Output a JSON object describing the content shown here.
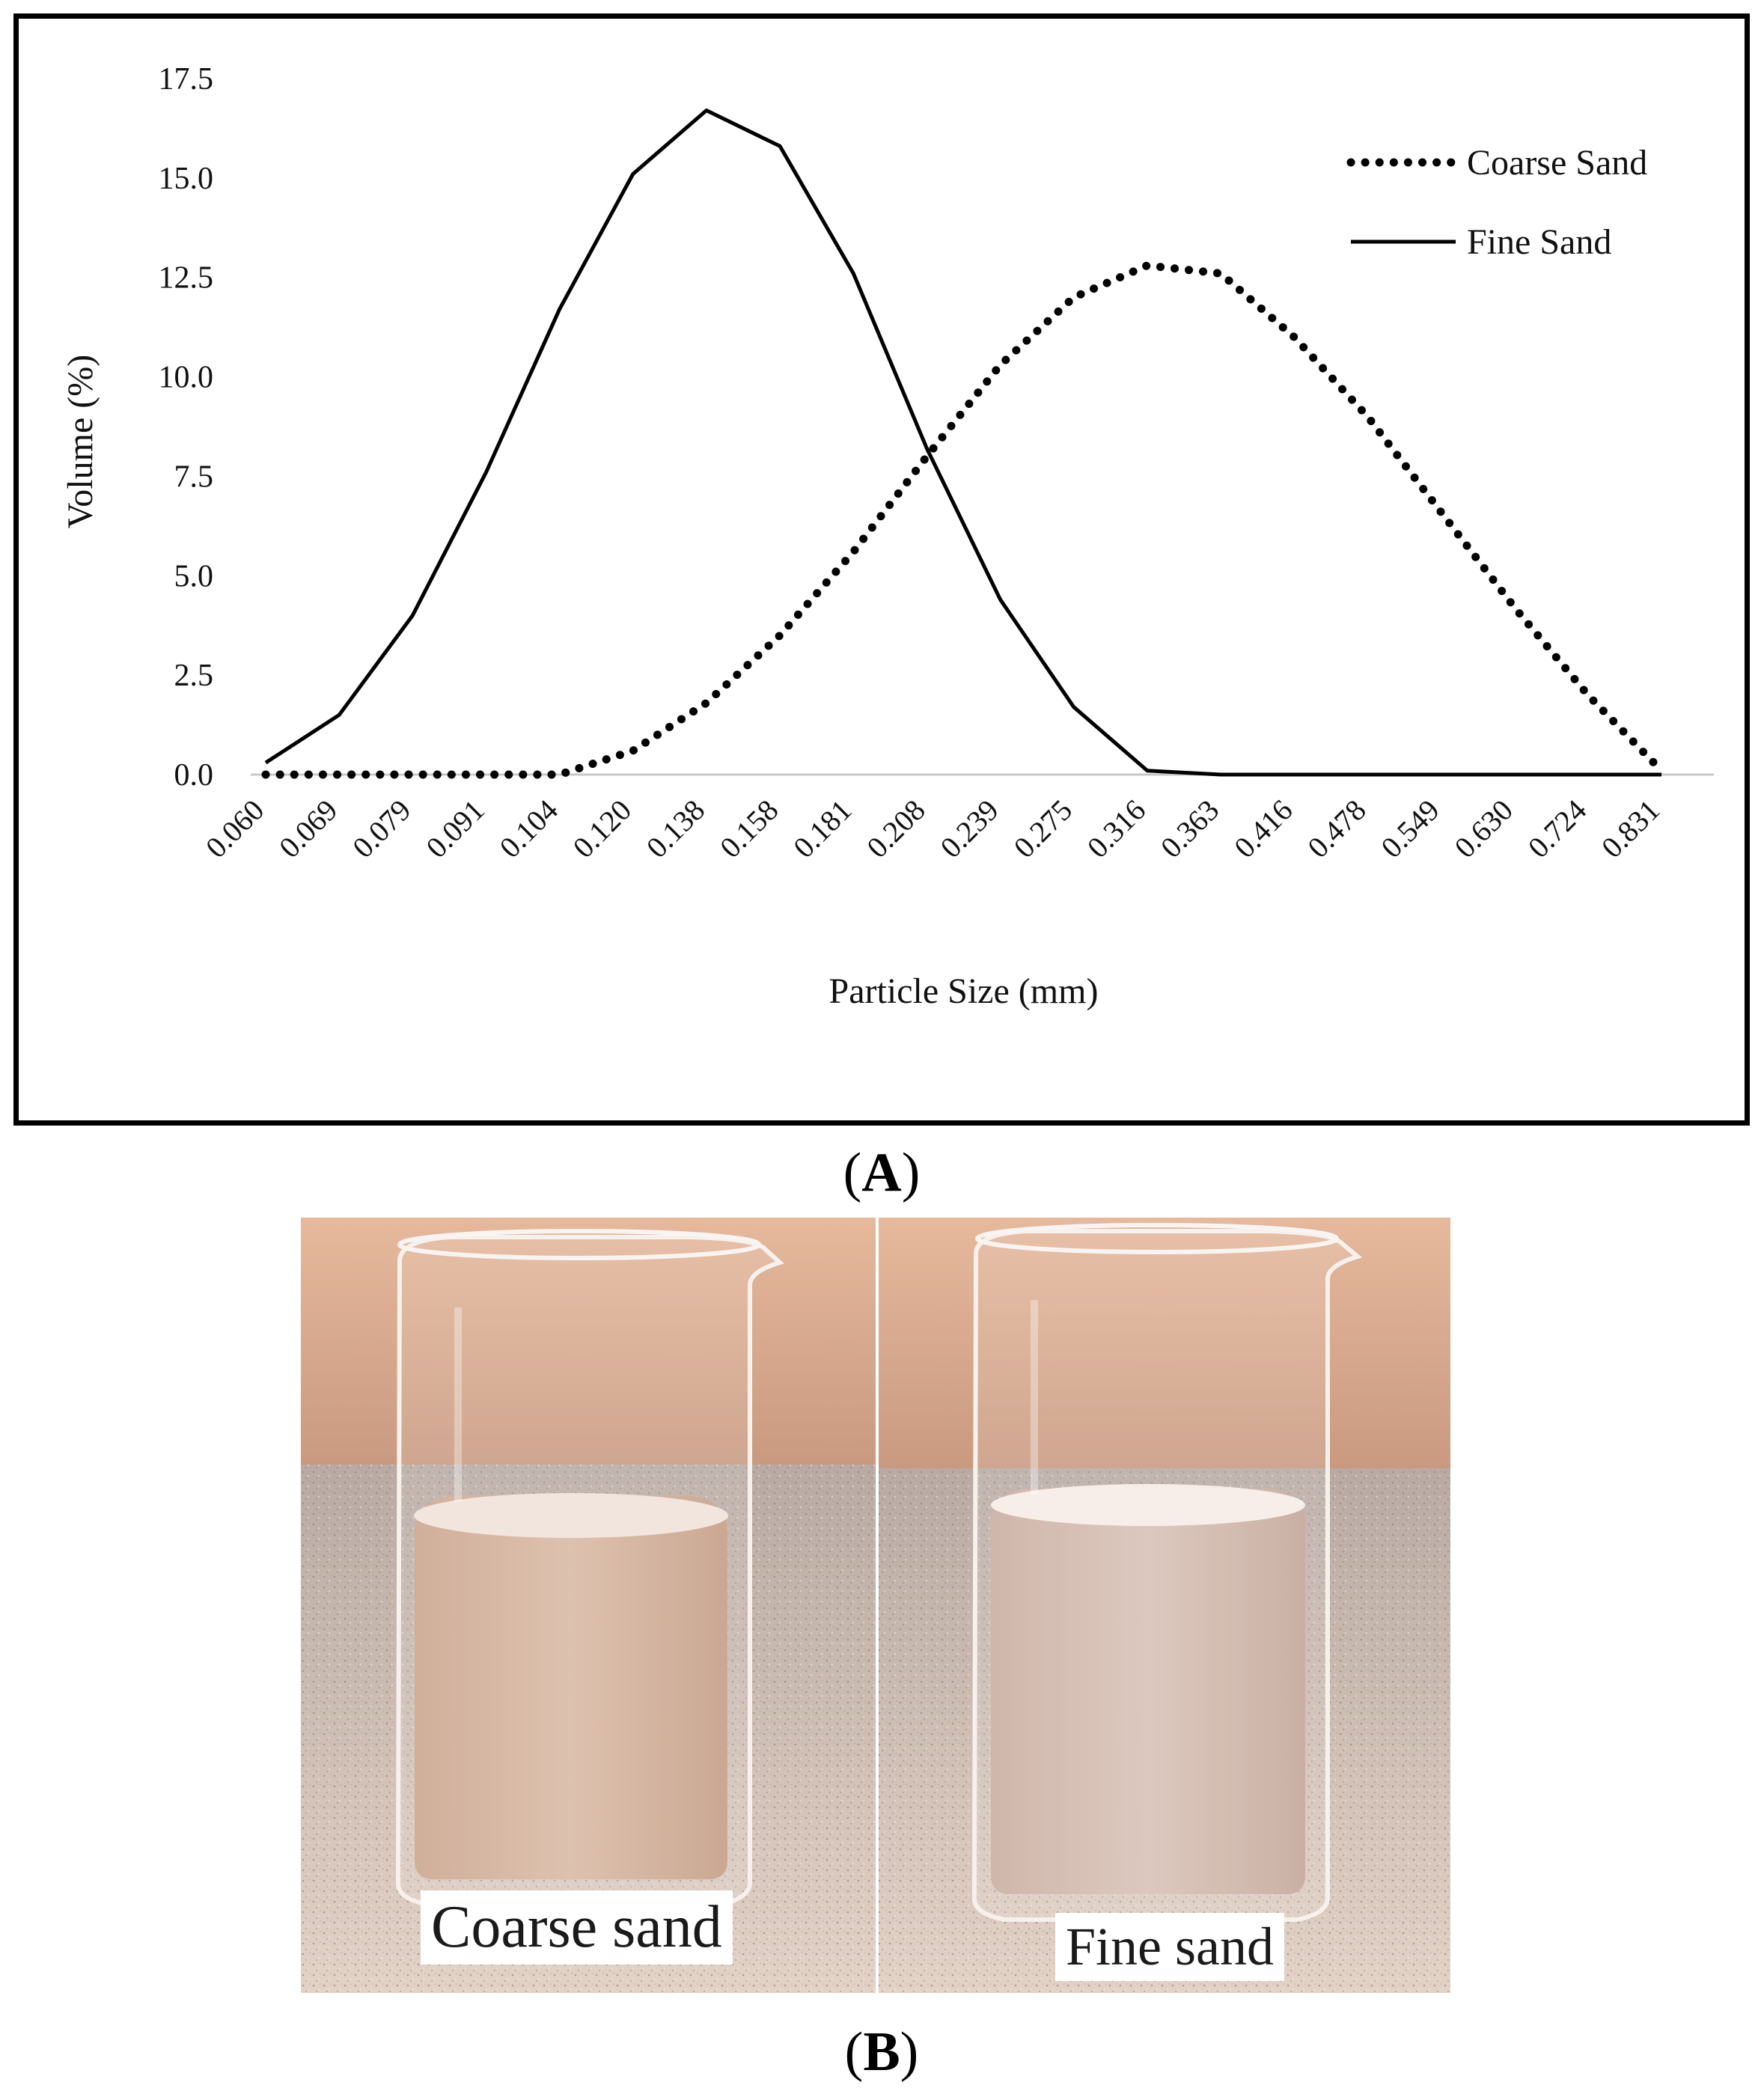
{
  "panel_labels": {
    "a": "A",
    "b": "B"
  },
  "photo": {
    "left_caption": "Coarse sand",
    "right_caption": "Fine sand"
  },
  "chart_data": {
    "type": "line",
    "xlabel": "Particle Size (mm)",
    "ylabel": "Volume (%)",
    "ylim": [
      0,
      17.5
    ],
    "yticks": [
      "0.0",
      "2.5",
      "5.0",
      "7.5",
      "10.0",
      "12.5",
      "15.0",
      "17.5"
    ],
    "categories": [
      "0.060",
      "0.069",
      "0.079",
      "0.091",
      "0.104",
      "0.120",
      "0.138",
      "0.158",
      "0.181",
      "0.208",
      "0.239",
      "0.275",
      "0.316",
      "0.363",
      "0.416",
      "0.478",
      "0.549",
      "0.630",
      "0.724",
      "0.831"
    ],
    "legend_position": "top-right",
    "grid": false,
    "series": [
      {
        "name": "Coarse Sand",
        "style": "dotted",
        "values": [
          0.0,
          0.0,
          0.0,
          0.0,
          0.0,
          0.6,
          1.8,
          3.5,
          5.6,
          8.0,
          10.3,
          12.0,
          12.8,
          12.6,
          11.0,
          9.0,
          6.6,
          4.2,
          2.0,
          0.1
        ]
      },
      {
        "name": "Fine Sand",
        "style": "solid",
        "values": [
          0.3,
          1.5,
          4.0,
          7.6,
          11.7,
          15.1,
          16.7,
          15.8,
          12.6,
          8.2,
          4.4,
          1.7,
          0.1,
          0.0,
          0.0,
          0.0,
          0.0,
          0.0,
          0.0,
          0.0
        ]
      }
    ]
  }
}
